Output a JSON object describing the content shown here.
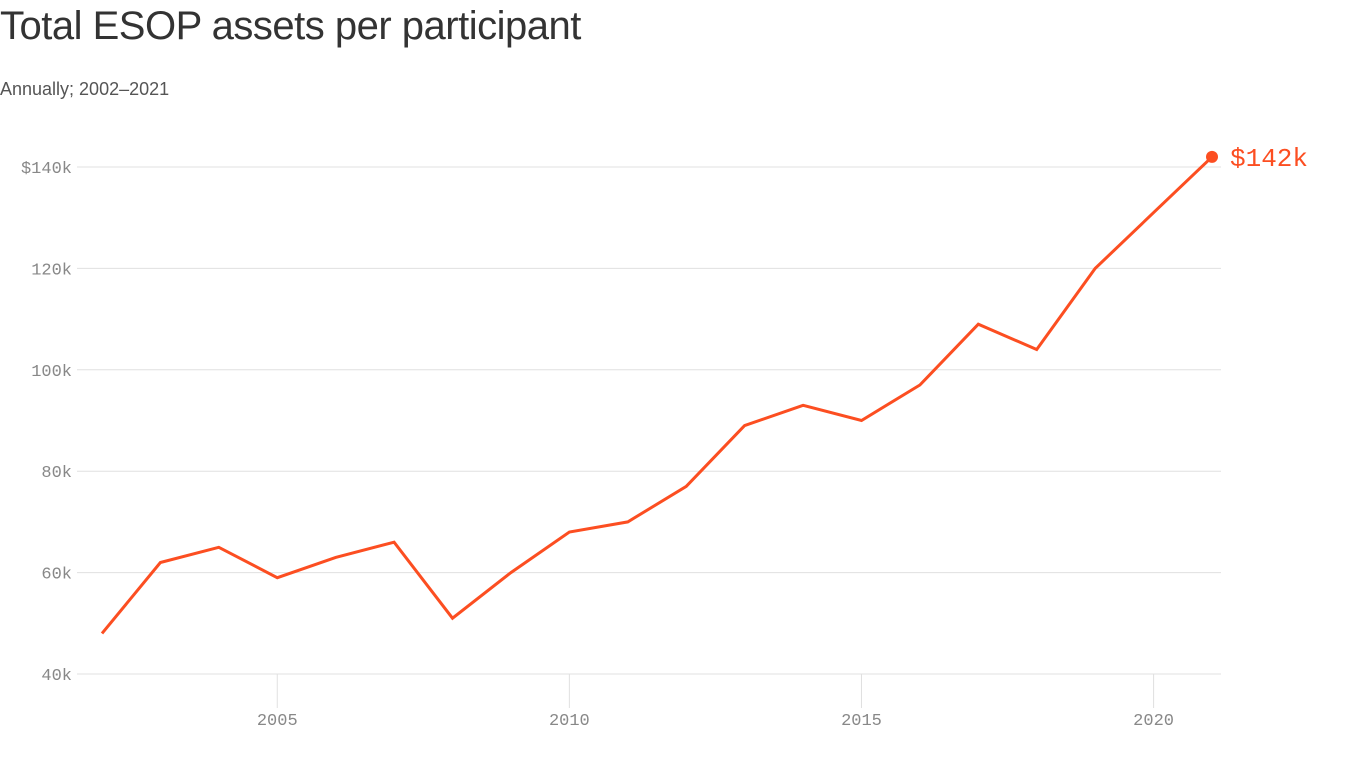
{
  "header": {
    "title": "Total ESOP assets per participant",
    "subtitle": "Annually; 2002–2021"
  },
  "colors": {
    "line": "#fc4e21",
    "grid": "#e0e0e0",
    "axis_text": "#888888",
    "title": "#333333"
  },
  "end_label": "$142k",
  "chart_data": {
    "type": "line",
    "title": "Total ESOP assets per participant",
    "subtitle": "Annually; 2002–2021",
    "xlabel": "",
    "ylabel": "",
    "x": [
      2002,
      2003,
      2004,
      2005,
      2006,
      2007,
      2008,
      2009,
      2010,
      2011,
      2012,
      2013,
      2014,
      2015,
      2016,
      2017,
      2018,
      2019,
      2020,
      2021
    ],
    "series": [
      {
        "name": "Total ESOP assets per participant (thousands USD)",
        "values": [
          48,
          62,
          65,
          59,
          63,
          66,
          51,
          60,
          68,
          70,
          77,
          89,
          93,
          90,
          97,
          109,
          104,
          120,
          131,
          142
        ]
      }
    ],
    "ylim": [
      40,
      140
    ],
    "xlim": [
      2002,
      2021
    ],
    "y_ticks": [
      {
        "value": 140,
        "label": "$140k"
      },
      {
        "value": 120,
        "label": "120k"
      },
      {
        "value": 100,
        "label": "100k"
      },
      {
        "value": 80,
        "label": "80k"
      },
      {
        "value": 60,
        "label": "60k"
      },
      {
        "value": 40,
        "label": "40k"
      }
    ],
    "x_ticks": [
      {
        "value": 2005,
        "label": "2005"
      },
      {
        "value": 2010,
        "label": "2010"
      },
      {
        "value": 2015,
        "label": "2015"
      },
      {
        "value": 2020,
        "label": "2020"
      }
    ],
    "grid": true,
    "legend": "none",
    "annotations": [
      {
        "x": 2021,
        "y": 142,
        "text": "$142k"
      }
    ]
  }
}
